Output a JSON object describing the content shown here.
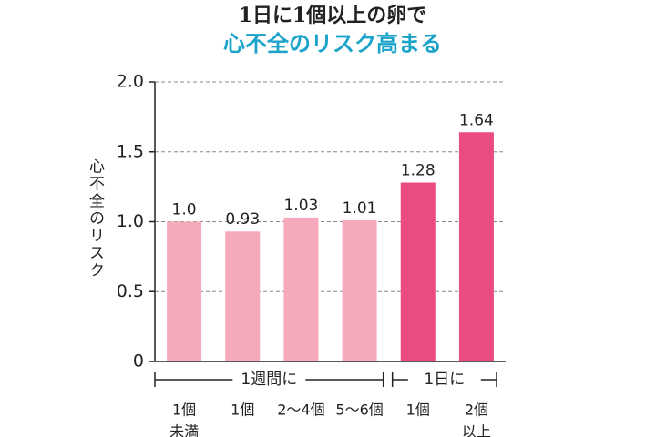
{
  "chart_data": {
    "type": "bar",
    "title": "1日に1個以上の卵で",
    "subtitle": "心不全のリスク高まる",
    "y_label": "心不全のリスク",
    "categories": [
      [
        "1個",
        "未満"
      ],
      [
        "1個"
      ],
      [
        "2～4個"
      ],
      [
        "5～6個"
      ],
      [
        "1個"
      ],
      [
        "2個",
        "以上"
      ]
    ],
    "groups": [
      "1週間に",
      "1日に"
    ],
    "values": [
      1.0,
      0.93,
      1.03,
      1.01,
      1.28,
      1.64
    ],
    "value_labels": [
      "1.0",
      "0.93",
      "1.03",
      "1.01",
      "1.28",
      "1.64"
    ],
    "colors": [
      "#f6a9bb",
      "#f6a9bb",
      "#f6a9bb",
      "#f6a9bb",
      "#ea4c82",
      "#ea4c82"
    ],
    "ylim": [
      0,
      2.0
    ],
    "yticks": [
      0,
      {
        "value": 0.5,
        "label": "0.5"
      },
      {
        "value": 1.0,
        "label": "1.0"
      },
      {
        "value": 1.5,
        "label": "1.5"
      },
      {
        "value": 2.0,
        "label": "2.0"
      }
    ],
    "grid": true
  }
}
